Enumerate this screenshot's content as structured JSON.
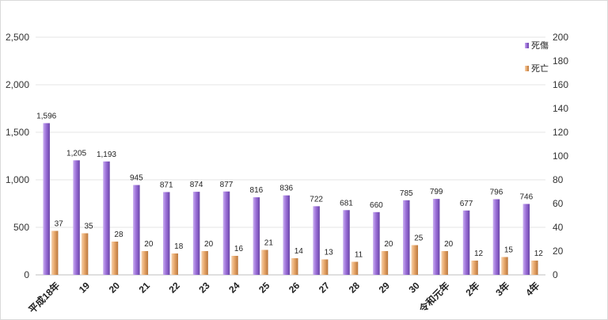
{
  "chart_data": {
    "type": "bar",
    "categories": [
      "平成18年",
      "19",
      "20",
      "21",
      "22",
      "23",
      "24",
      "25",
      "26",
      "27",
      "28",
      "29",
      "30",
      "令和元年",
      "2年",
      "3年",
      "4年"
    ],
    "series": [
      {
        "name": "死傷",
        "axis": "left",
        "values": [
          1596,
          1205,
          1193,
          945,
          871,
          874,
          877,
          816,
          836,
          722,
          681,
          660,
          785,
          799,
          677,
          796,
          746
        ],
        "labels": [
          "1,596",
          "1,205",
          "1,193",
          "945",
          "871",
          "874",
          "877",
          "816",
          "836",
          "722",
          "681",
          "660",
          "785",
          "799",
          "677",
          "796",
          "746"
        ],
        "color": "#9b6fd8"
      },
      {
        "name": "死亡",
        "axis": "right",
        "values": [
          37,
          35,
          28,
          20,
          18,
          20,
          16,
          21,
          14,
          13,
          11,
          20,
          25,
          20,
          12,
          15,
          12
        ],
        "labels": [
          "37",
          "35",
          "28",
          "20",
          "18",
          "20",
          "16",
          "21",
          "14",
          "13",
          "11",
          "20",
          "25",
          "20",
          "12",
          "15",
          "12"
        ],
        "color": "#e8a86b"
      }
    ],
    "y_left": {
      "range": [
        0,
        2500
      ],
      "ticks": [
        "0",
        "500",
        "1,000",
        "1,500",
        "2,000",
        "2,500"
      ]
    },
    "y_right": {
      "range": [
        0,
        200
      ],
      "ticks": [
        "0",
        "20",
        "40",
        "60",
        "80",
        "100",
        "120",
        "140",
        "160",
        "180",
        "200"
      ]
    },
    "grid": true,
    "legend": "top-right"
  }
}
